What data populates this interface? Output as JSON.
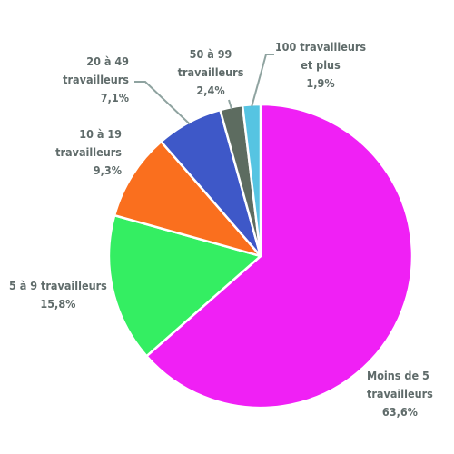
{
  "chart_data": {
    "type": "pie",
    "start": "12 o'clock",
    "direction": "clockwise",
    "slices": [
      {
        "label_lines": [
          "Moins de 5",
          "travailleurs"
        ],
        "value": 63.6,
        "value_label": "63,6%",
        "color": "#f020f5"
      },
      {
        "label_lines": [
          "5 à 9 travailleurs"
        ],
        "value": 15.8,
        "value_label": "15,8%",
        "color": "#34ee62"
      },
      {
        "label_lines": [
          "10 à 19",
          "travailleurs"
        ],
        "value": 9.3,
        "value_label": "9,3%",
        "color": "#fa6f1e"
      },
      {
        "label_lines": [
          "20 à 49",
          "travailleurs"
        ],
        "value": 7.1,
        "value_label": "7,1%",
        "color": "#3e58c8"
      },
      {
        "label_lines": [
          "50 à 99",
          "travailleurs"
        ],
        "value": 2.4,
        "value_label": "2,4%",
        "color": "#5d6c60"
      },
      {
        "label_lines": [
          "100 travailleurs",
          "et plus"
        ],
        "value": 1.9,
        "value_label": "1,9%",
        "color": "#56c4e2"
      }
    ],
    "label_color": "#5f6b6a",
    "leader_color": "#8fa3a0"
  }
}
